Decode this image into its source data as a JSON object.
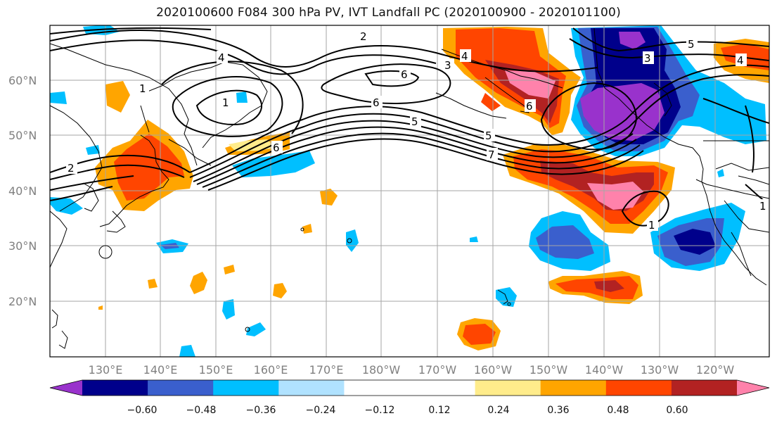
{
  "title": "2020100600 F084 300 hPa PV, IVT Landfall PC (2020100900 - 2020101100)",
  "lat_labels": [
    "60°N",
    "50°N",
    "40°N",
    "30°N",
    "20°N"
  ],
  "lon_labels": [
    "130°E",
    "140°E",
    "150°E",
    "160°E",
    "170°E",
    "180°W",
    "170°W",
    "160°W",
    "150°W",
    "140°W",
    "130°W",
    "120°W"
  ],
  "colorbar": {
    "colors": [
      "#9932cc",
      "#00008b",
      "#3a5fcd",
      "#00bfff",
      "#b0e2ff",
      "#ffffff",
      "#ffffff",
      "#ffec8b",
      "#ffa500",
      "#ff4500",
      "#b22222",
      "#ff82ab"
    ],
    "tick_labels": [
      "−0.60",
      "−0.48",
      "−0.36",
      "−0.24",
      "−0.12",
      "0.12",
      "0.24",
      "0.36",
      "0.48",
      "0.60"
    ]
  },
  "contour_labels": [
    "2",
    "4",
    "1",
    "6",
    "6",
    "3",
    "5",
    "5",
    "7",
    "6",
    "1",
    "2",
    "6",
    "4",
    "5",
    "3",
    "4",
    "1",
    "1"
  ]
}
